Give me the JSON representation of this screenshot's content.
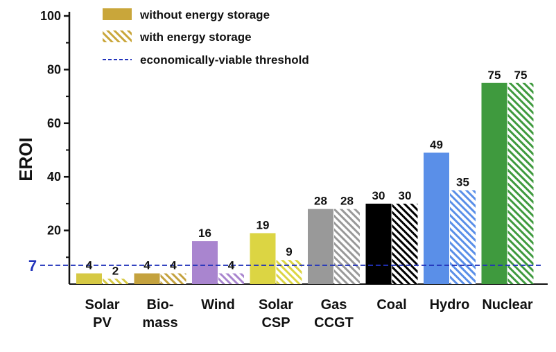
{
  "chart_data": {
    "type": "bar",
    "ylabel": "EROI",
    "xlabel": "",
    "ylim": [
      0,
      100
    ],
    "yticks": [
      20,
      40,
      60,
      80,
      100
    ],
    "grid": false,
    "legend_position": "top-left",
    "categories": [
      {
        "lines": [
          "Solar",
          "PV"
        ],
        "color": "#d6c944"
      },
      {
        "lines": [
          "Bio-",
          "mass"
        ],
        "color": "#c4a23e"
      },
      {
        "lines": [
          "Wind"
        ],
        "color": "#a985cf"
      },
      {
        "lines": [
          "Solar",
          "CSP"
        ],
        "color": "#dcd543"
      },
      {
        "lines": [
          "Gas",
          "CCGT"
        ],
        "color": "#999999"
      },
      {
        "lines": [
          "Coal"
        ],
        "color": "#000000"
      },
      {
        "lines": [
          "Hydro"
        ],
        "color": "#5a8fe8"
      },
      {
        "lines": [
          "Nuclear"
        ],
        "color": "#3f9a3e"
      }
    ],
    "series": [
      {
        "name": "without energy storage",
        "style": "solid",
        "values": [
          4,
          4,
          16,
          19,
          28,
          30,
          49,
          75
        ],
        "labels": [
          "4",
          "4",
          "16",
          "19",
          "28",
          "30",
          "49",
          "75"
        ]
      },
      {
        "name": "with energy storage",
        "style": "hatched",
        "values": [
          2,
          4,
          4,
          9,
          28,
          30,
          35,
          75
        ],
        "labels": [
          "2",
          "4",
          "4",
          "9",
          "28",
          "30",
          "35",
          "75"
        ]
      }
    ],
    "threshold": {
      "value": 7,
      "label": "7",
      "name": "economically-viable threshold",
      "color": "#2233bb"
    },
    "legend_swatch_color": "#c9a63a"
  }
}
